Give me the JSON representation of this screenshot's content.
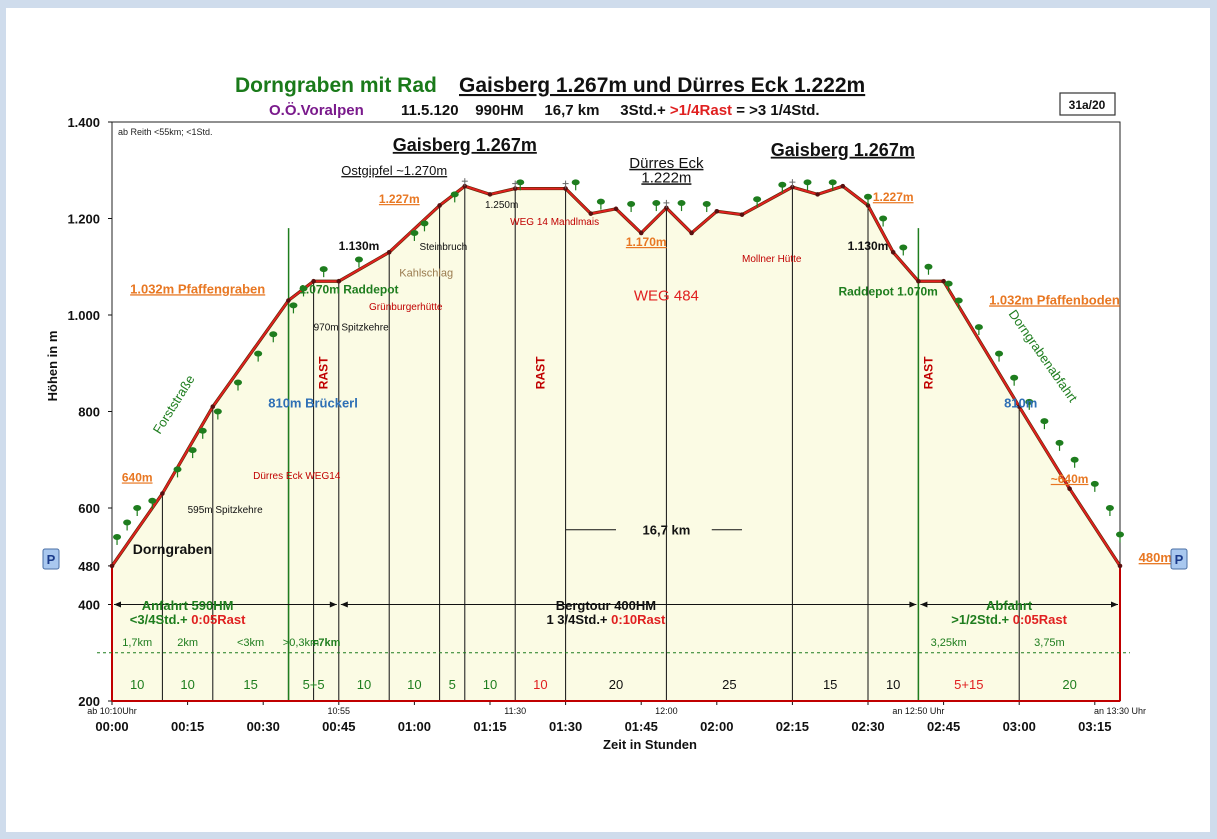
{
  "header": {
    "title_left": "Dorngraben mit Rad",
    "title_right": "Gaisberg 1.267m  und Dürres Eck 1.222m",
    "subtitle_region": "O.Ö.Voralpen",
    "subtitle_main": "11.5.120    990HM     16,7 km     3Std.+ ",
    "subtitle_rest": ">1/4Rast",
    "subtitle_total": " = >3 1/4Std.",
    "badge": "31a/20",
    "note": "ab Reith <55km; <1Std."
  },
  "colors": {
    "profile_line": "#e02020",
    "fill": "#fbfbe4",
    "green": "#1e7d1e",
    "orange": "#e87722",
    "blue": "#2e6fb5",
    "dark_red": "#c00000",
    "title_green": "#1a7a1a",
    "purple": "#7a1a8c"
  },
  "chart_data": {
    "type": "area",
    "xlabel": "Zeit in Stunden",
    "ylabel": "Höhen in m",
    "x_ticks": [
      "00:00",
      "00:15",
      "00:30",
      "00:45",
      "01:00",
      "01:15",
      "01:30",
      "01:45",
      "02:00",
      "02:15",
      "02:30",
      "02:45",
      "03:00",
      "03:15"
    ],
    "x_ticks_small": [
      {
        "label": "ab 10:10Uhr",
        "t": 0
      },
      {
        "label": "10:55",
        "t": 45
      },
      {
        "label": "11:30",
        "t": 80
      },
      {
        "label": "12:00",
        "t": 110
      },
      {
        "label": "an 12:50 Uhr",
        "t": 160
      },
      {
        "label": "an 13:30 Uhr",
        "t": 200
      }
    ],
    "y_ticks": [
      {
        "label": "1.400",
        "v": 1400
      },
      {
        "label": "1.200",
        "v": 1200
      },
      {
        "label": "1.000",
        "v": 1000
      },
      {
        "label": "800",
        "v": 800
      },
      {
        "label": "600",
        "v": 600
      },
      {
        "label": "480",
        "v": 480
      },
      {
        "label": "400",
        "v": 400
      },
      {
        "label": "200",
        "v": 200
      }
    ],
    "xlim": [
      0,
      200
    ],
    "ylim": [
      200,
      1400
    ],
    "profile": [
      [
        0,
        480
      ],
      [
        10,
        630
      ],
      [
        20,
        810
      ],
      [
        35,
        1030
      ],
      [
        40,
        1070
      ],
      [
        45,
        1070
      ],
      [
        55,
        1130
      ],
      [
        65,
        1227
      ],
      [
        70,
        1267
      ],
      [
        75,
        1250
      ],
      [
        80,
        1262
      ],
      [
        90,
        1262
      ],
      [
        95,
        1210
      ],
      [
        100,
        1220
      ],
      [
        105,
        1170
      ],
      [
        110,
        1222
      ],
      [
        115,
        1170
      ],
      [
        120,
        1215
      ],
      [
        125,
        1208
      ],
      [
        135,
        1265
      ],
      [
        140,
        1250
      ],
      [
        145,
        1267
      ],
      [
        150,
        1227
      ],
      [
        155,
        1130
      ],
      [
        160,
        1070
      ],
      [
        165,
        1070
      ],
      [
        180,
        810
      ],
      [
        190,
        640
      ],
      [
        200,
        480
      ]
    ],
    "verticals": [
      10,
      20,
      35,
      40,
      45,
      55,
      65,
      70,
      80,
      90,
      110,
      135,
      150,
      160,
      180,
      200
    ],
    "green_rest_lines": [
      40,
      160
    ],
    "segment_minutes": [
      {
        "label": "10",
        "t": 5
      },
      {
        "label": "10",
        "t": 15
      },
      {
        "label": "15",
        "t": 27.5
      },
      {
        "label": "5+5",
        "t": 40
      },
      {
        "label": "10",
        "t": 50
      },
      {
        "label": "10",
        "t": 60
      },
      {
        "label": "5",
        "t": 67.5
      },
      {
        "label": "10",
        "t": 75
      },
      {
        "label": "10",
        "t": 85,
        "red": true
      },
      {
        "label": "20",
        "t": 100
      },
      {
        "label": "25",
        "t": 122.5
      },
      {
        "label": "15",
        "t": 142.5
      },
      {
        "label": "10",
        "t": 155
      },
      {
        "label": "5+15",
        "t": 170,
        "red": true
      },
      {
        "label": "20",
        "t": 190
      }
    ],
    "segment_km": [
      {
        "label": "1,7km",
        "t": 5
      },
      {
        "label": "2km",
        "t": 15
      },
      {
        "label": "<3km",
        "t": 27.5
      },
      {
        "label": ">0,3km",
        "t": 37.5
      },
      {
        "label": "=7km",
        "t": 42.5
      },
      {
        "label": "3,25km",
        "t": 166
      },
      {
        "label": "3,75m",
        "t": 186
      }
    ],
    "rest_labels": [
      {
        "label": "RAST",
        "t": 42,
        "v": 880
      },
      {
        "label": "RAST",
        "t": 85,
        "v": 880
      },
      {
        "label": "RAST",
        "t": 162,
        "v": 880
      }
    ],
    "sections": [
      {
        "name": "Anfahrt 590HM",
        "time": "<3/4Std.+ ",
        "rest": "0:05Rast",
        "t": 15
      },
      {
        "name": "Bergtour 400HM",
        "time": "1 3/4Std.+ ",
        "rest": "0:10Rast",
        "t": 98
      },
      {
        "name": "Abfahrt",
        "time": ">1/2Std.+ ",
        "rest": "0:05Rast",
        "t": 178
      }
    ],
    "distance_label": "16,7 km",
    "parking": "P",
    "annotations": [
      {
        "text": "Gaisberg 1.267m",
        "t": 70,
        "v": 1340,
        "style": "peak"
      },
      {
        "text": "Dürres Eck",
        "t": 110,
        "v": 1305,
        "style": "peak2"
      },
      {
        "text": "1.222m",
        "t": 110,
        "v": 1275,
        "style": "peak2"
      },
      {
        "text": "Gaisberg 1.267m",
        "t": 145,
        "v": 1330,
        "style": "peak"
      },
      {
        "text": "Ostgipfel ~1.270m",
        "t": 56,
        "v": 1290,
        "style": "peak3"
      },
      {
        "text": "1.250m",
        "t": 74,
        "v": 1222,
        "style": "small"
      },
      {
        "text": "WEG 14 Mandlmais",
        "t": 79,
        "v": 1187,
        "style": "smallred"
      },
      {
        "text": "1.227m",
        "t": 57,
        "v": 1232,
        "style": "orange"
      },
      {
        "text": "1.130m",
        "t": 49,
        "v": 1135,
        "style": "blackbold"
      },
      {
        "text": "Steinbruch",
        "t": 61,
        "v": 1135,
        "style": "small"
      },
      {
        "text": "Kahlschlag",
        "t": 57,
        "v": 1080,
        "style": "tan"
      },
      {
        "text": "1.070m Raddepot",
        "t": 47,
        "v": 1045,
        "style": "green"
      },
      {
        "text": "Grünburgerhütte",
        "t": 51,
        "v": 1010,
        "style": "smallred"
      },
      {
        "text": "1.032m  Pfaffengraben",
        "t": 17,
        "v": 1045,
        "style": "orangebig"
      },
      {
        "text": "970m Spitzkehre",
        "t": 40,
        "v": 968,
        "style": "small"
      },
      {
        "text": "810m Brückerl",
        "t": 31,
        "v": 808,
        "style": "blue"
      },
      {
        "text": "640m",
        "t": 5,
        "v": 655,
        "style": "orange"
      },
      {
        "text": "Dürres Eck WEG14",
        "t": 28,
        "v": 660,
        "style": "smallred"
      },
      {
        "text": "595m Spitzkehre",
        "t": 15,
        "v": 590,
        "style": "small"
      },
      {
        "text": "Dorngraben",
        "t": 12,
        "v": 505,
        "style": "blackbig"
      },
      {
        "text": "1.170m",
        "t": 106,
        "v": 1143,
        "style": "orange"
      },
      {
        "text": "Mollner Hütte",
        "t": 125,
        "v": 1110,
        "style": "smallred"
      },
      {
        "text": "WEG 484",
        "t": 110,
        "v": 1030,
        "style": "redbig"
      },
      {
        "text": "1.227m",
        "t": 155,
        "v": 1236,
        "style": "orange"
      },
      {
        "text": "1.130m",
        "t": 150,
        "v": 1135,
        "style": "blackbold"
      },
      {
        "text": "Raddepot 1.070m",
        "t": 154,
        "v": 1040,
        "style": "green"
      },
      {
        "text": "1.032m Pfaffenboden",
        "t": 187,
        "v": 1022,
        "style": "orangebig"
      },
      {
        "text": "810m",
        "t": 177,
        "v": 808,
        "style": "blue"
      },
      {
        "text": "~640m",
        "t": 190,
        "v": 652,
        "style": "orange"
      },
      {
        "text": "480m",
        "t": 207,
        "v": 488,
        "style": "orangebig"
      },
      {
        "text": "Forststraße",
        "t": 13,
        "v": 810,
        "style": "greenrot1"
      },
      {
        "text": "Dorngrabenabfahrt",
        "t": 184,
        "v": 910,
        "style": "greenrot2"
      }
    ]
  }
}
